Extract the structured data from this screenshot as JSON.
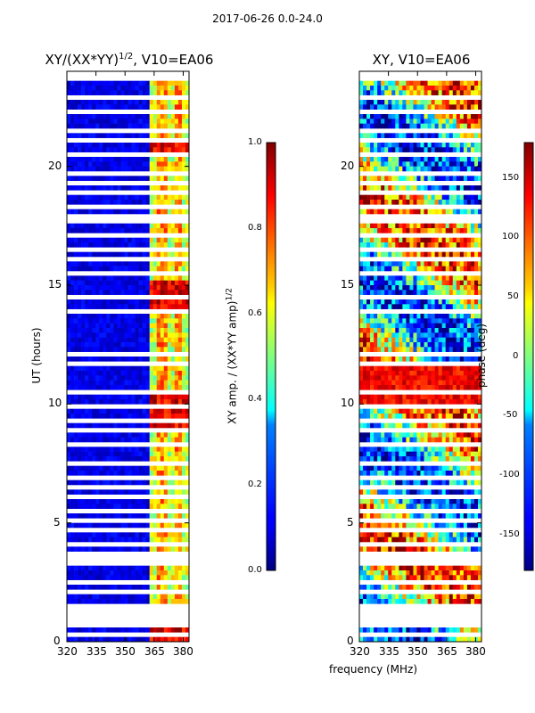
{
  "suptitle": "2017-06-26 0.0-24.0",
  "chart_data": [
    {
      "type": "heatmap",
      "title_prefix": "XY/(XX*YY)",
      "title_sup": "1/2",
      "title_suffix": ", V10=EA06",
      "ylabel": "UT (hours)",
      "xlabel": "frequency (MHz)",
      "xlim": [
        320,
        383
      ],
      "ylim": [
        0,
        24
      ],
      "xticks": [
        "320",
        "335",
        "350",
        "365",
        "380"
      ],
      "yticks": [
        "0",
        "5",
        "10",
        "15",
        "20"
      ],
      "colorbar": {
        "label_prefix": "XY amp. / (XX*YY amp)",
        "label_sup": "1/2",
        "range": [
          0.0,
          1.0
        ],
        "ticks": [
          "0.0",
          "0.2",
          "0.4",
          "0.6",
          "0.8",
          "1.0"
        ]
      }
    },
    {
      "type": "heatmap",
      "title": "XY, V10=EA06",
      "xlabel": "frequency (MHz)",
      "xlim": [
        320,
        383
      ],
      "ylim": [
        0,
        24
      ],
      "xticks": [
        "320",
        "335",
        "350",
        "365",
        "380"
      ],
      "yticks": [
        "0",
        "5",
        "10",
        "15",
        "20"
      ],
      "colorbar": {
        "label": "phase (deg)",
        "range": [
          -180,
          180
        ],
        "ticks": [
          "-150",
          "-100",
          "-50",
          "0",
          "50",
          "100",
          "150"
        ]
      }
    }
  ],
  "xlabel_shared": "frequency (MHz)"
}
